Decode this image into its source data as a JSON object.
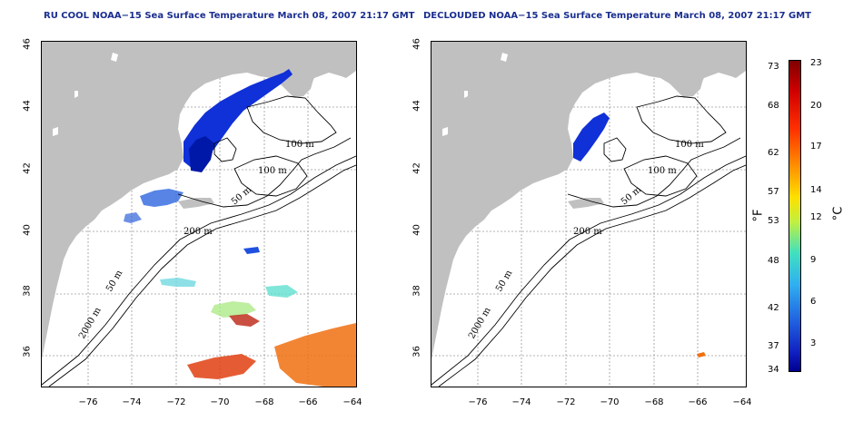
{
  "panels": [
    {
      "title": "RU COOL NOAA−15 Sea Surface Temperature March 08, 2007 21:17 GMT"
    },
    {
      "title": "DECLOUDED NOAA−15 Sea Surface Temperature March 08, 2007 21:17 GMT"
    }
  ],
  "axes": {
    "y_ticks": [
      "36",
      "38",
      "40",
      "42",
      "44",
      "46"
    ],
    "x_ticks": [
      "−76",
      "−74",
      "−72",
      "−70",
      "−68",
      "−66",
      "−64"
    ]
  },
  "contours": {
    "left": [
      "100 m",
      "100 m",
      "50 m",
      "200 m",
      "50 m",
      "2000 m"
    ],
    "right": [
      "100 m",
      "100 m",
      "50 m",
      "200 m",
      "50 m",
      "2000 m"
    ]
  },
  "colorbar": {
    "unit_f": "°F",
    "unit_c": "°C",
    "f_labels": [
      "73",
      "68",
      "62",
      "57",
      "53",
      "48",
      "42",
      "37",
      "34"
    ],
    "c_labels": [
      "23",
      "20",
      "17",
      "14",
      "12",
      "9",
      "6",
      "3"
    ]
  },
  "colors": {
    "land": "#c0c0c0",
    "title": "#1a2e8f",
    "gridline": "#9a9a9a"
  }
}
